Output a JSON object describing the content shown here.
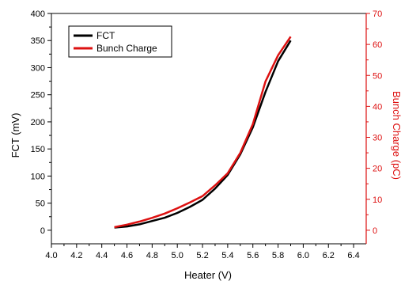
{
  "chart_data": {
    "type": "line",
    "xlabel": "Heater (V)",
    "ylabel_left": "FCT (mV)",
    "ylabel_right": "Bunch Charge (pC)",
    "xlim": [
      4.0,
      6.5
    ],
    "ylim_left": [
      -25,
      400
    ],
    "ylim_right": [
      -4.375,
      70
    ],
    "x_ticks": [
      "4.0",
      "4.2",
      "4.4",
      "4.6",
      "4.8",
      "5.0",
      "5.2",
      "5.4",
      "5.6",
      "5.8",
      "6.0",
      "6.2",
      "6.4"
    ],
    "y_left_ticks": [
      "0",
      "50",
      "100",
      "150",
      "200",
      "250",
      "300",
      "350",
      "400"
    ],
    "y_right_ticks": [
      "0",
      "10",
      "20",
      "30",
      "40",
      "50",
      "60",
      "70"
    ],
    "grid": false,
    "legend_position": "top-left",
    "colors": {
      "FCT": "#000000",
      "Bunch Charge": "#dd1111",
      "right_axis": "#dd1111"
    },
    "series": [
      {
        "name": "FCT",
        "axis": "left",
        "x": [
          4.5,
          4.6,
          4.7,
          4.8,
          4.9,
          5.0,
          5.1,
          5.2,
          5.3,
          5.4,
          5.5,
          5.6,
          5.7,
          5.8,
          5.9
        ],
        "values": [
          5,
          7,
          11,
          17,
          23,
          32,
          43,
          56,
          77,
          102,
          140,
          190,
          255,
          312,
          350
        ]
      },
      {
        "name": "Bunch Charge",
        "axis": "right",
        "x": [
          4.5,
          4.6,
          4.7,
          4.8,
          4.9,
          5.0,
          5.1,
          5.2,
          5.3,
          5.4,
          5.5,
          5.6,
          5.7,
          5.8,
          5.9
        ],
        "values": [
          1.0,
          1.8,
          2.8,
          4.0,
          5.4,
          7.1,
          9.0,
          11.0,
          14.5,
          18.4,
          25.0,
          34.3,
          48.0,
          56.5,
          62.5
        ]
      }
    ]
  }
}
